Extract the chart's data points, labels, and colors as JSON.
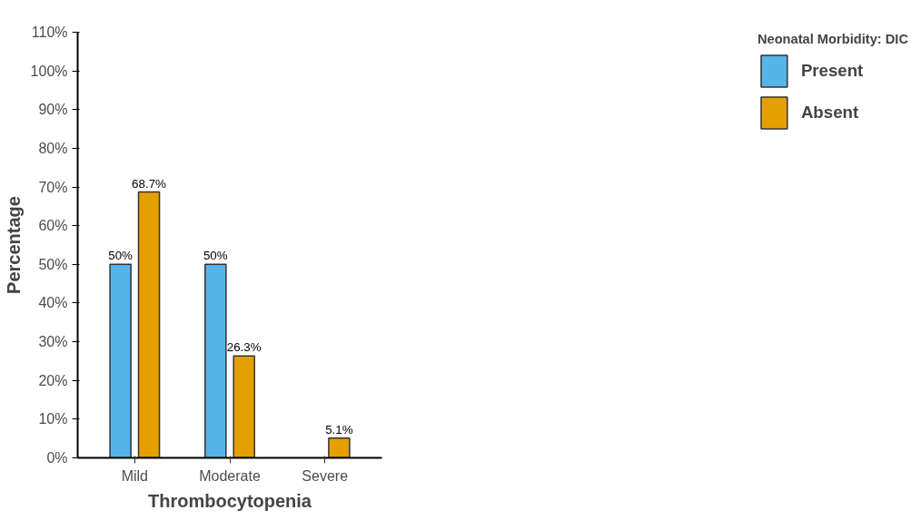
{
  "chart_data": {
    "type": "bar",
    "xlabel": "Thrombocytopenia",
    "ylabel": "Percentage",
    "legend_title": "Neonatal Morbidity: DIC",
    "categories": [
      "Mild",
      "Moderate",
      "Severe"
    ],
    "series": [
      {
        "name": "Present",
        "color": "#56b4e9",
        "values": [
          50,
          50,
          null
        ],
        "value_labels": [
          "50%",
          "50%",
          null
        ]
      },
      {
        "name": "Absent",
        "color": "#e69f00",
        "values": [
          68.7,
          26.3,
          5.1
        ],
        "value_labels": [
          "68.7%",
          "26.3%",
          "5.1%"
        ]
      }
    ],
    "ylim": [
      0,
      110
    ],
    "yticks": [
      {
        "value": 0,
        "label": "0%"
      },
      {
        "value": 10,
        "label": "10%"
      },
      {
        "value": 20,
        "label": "20%"
      },
      {
        "value": 30,
        "label": "30%"
      },
      {
        "value": 40,
        "label": "40%"
      },
      {
        "value": 50,
        "label": "50%"
      },
      {
        "value": 60,
        "label": "60%"
      },
      {
        "value": 70,
        "label": "70%"
      },
      {
        "value": 80,
        "label": "80%"
      },
      {
        "value": 90,
        "label": "90%"
      },
      {
        "value": 100,
        "label": "100%"
      },
      {
        "value": 110,
        "label": "110%"
      }
    ],
    "grid": false,
    "legend": "right"
  }
}
